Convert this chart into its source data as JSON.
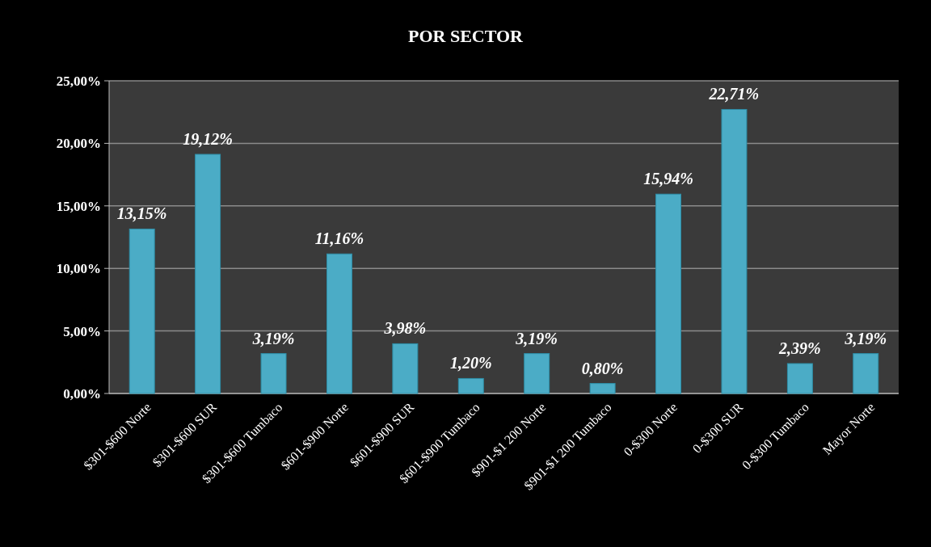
{
  "chart_data": {
    "type": "bar",
    "title": "POR SECTOR",
    "categories": [
      "$301-$600 Norte",
      "$301-$600 SUR",
      "$301-$600 Tumbaco",
      "$601-$900 Norte",
      "$601-$900 SUR",
      "$601-$900 Tumbaco",
      "$901-$1 200 Norte",
      "$901-$1 200 Tumbaco",
      "0-$300 Norte",
      "0-$300 SUR",
      "0-$300 Tumbaco",
      "Mayor Norte"
    ],
    "values": [
      13.15,
      19.12,
      3.19,
      11.16,
      3.98,
      1.2,
      3.19,
      0.8,
      15.94,
      22.71,
      2.39,
      3.19
    ],
    "value_labels": [
      "13,15%",
      "19,12%",
      "3,19%",
      "11,16%",
      "3,98%",
      "1,20%",
      "3,19%",
      "0,80%",
      "15,94%",
      "22,71%",
      "2,39%",
      "3,19%"
    ],
    "color": "#4bacc6",
    "ylim": [
      0,
      25
    ],
    "yticks": [
      {
        "value": 0,
        "label": "0,00%"
      },
      {
        "value": 5,
        "label": "5,00%"
      },
      {
        "value": 10,
        "label": "10,00%"
      },
      {
        "value": 15,
        "label": "15,00%"
      },
      {
        "value": 20,
        "label": "20,00%"
      },
      {
        "value": 25,
        "label": "25,00%"
      }
    ],
    "grid": "y"
  }
}
